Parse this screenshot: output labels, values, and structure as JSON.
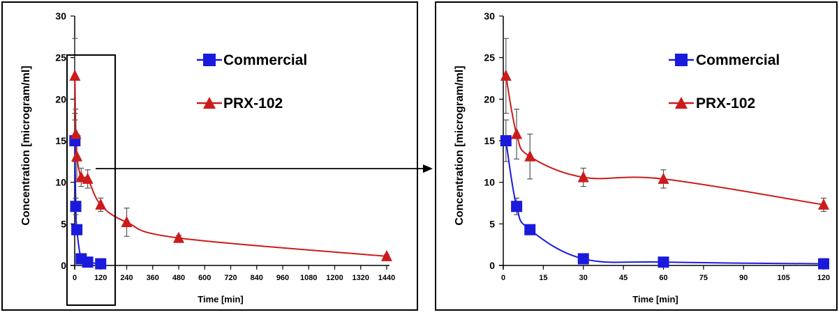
{
  "charts": [
    {
      "ylabel": "Concentration [microgram/ml]",
      "xlabel": "Time [min]",
      "y_ticks": [
        "0",
        "5",
        "10",
        "15",
        "20",
        "25",
        "30"
      ],
      "x_ticks": [
        "0",
        "120",
        "240",
        "360",
        "480",
        "600",
        "720",
        "840",
        "960",
        "1080",
        "1200",
        "1320",
        "1440"
      ],
      "legend": [
        "Commercial",
        "PRX-102"
      ]
    },
    {
      "ylabel": "Concentration [microgram/ml]",
      "xlabel": "Time [min]",
      "y_ticks": [
        "0",
        "5",
        "10",
        "15",
        "20",
        "25",
        "30"
      ],
      "x_ticks": [
        "0",
        "15",
        "30",
        "45",
        "60",
        "75",
        "90",
        "105",
        "120"
      ],
      "legend": [
        "Commercial",
        "PRX-102"
      ]
    }
  ],
  "colors": {
    "commercial": "#1a1adc",
    "prx": "#cc1b1b",
    "axis": "#000000",
    "errbar": "#555555"
  },
  "chart_data": [
    {
      "type": "line",
      "xlabel": "Time [min]",
      "ylabel": "Concentration [microgram/ml]",
      "xlim": [
        0,
        1440
      ],
      "ylim": [
        0,
        30
      ],
      "legend_position": "top-right",
      "series": [
        {
          "name": "Commercial",
          "marker": "square",
          "x": [
            1,
            5,
            10,
            30,
            60,
            120
          ],
          "y": [
            15.0,
            7.1,
            4.3,
            0.8,
            0.4,
            0.2
          ],
          "err": [
            2.5,
            1.0,
            0.4,
            0.2,
            0.1,
            0.1
          ]
        },
        {
          "name": "PRX-102",
          "marker": "triangle",
          "x": [
            1,
            5,
            10,
            30,
            60,
            120,
            240,
            480,
            1440
          ],
          "y": [
            22.8,
            15.8,
            13.1,
            10.6,
            10.4,
            7.3,
            5.2,
            3.3,
            1.1
          ],
          "err": [
            4.5,
            3.0,
            2.7,
            1.1,
            1.1,
            0.8,
            1.7,
            0.3,
            0.2
          ]
        }
      ],
      "annotations": [
        "zoom box around 0-120 min, arrow to detail chart"
      ]
    },
    {
      "type": "line",
      "xlabel": "Time [min]",
      "ylabel": "Concentration [microgram/ml]",
      "xlim": [
        0,
        120
      ],
      "ylim": [
        0,
        30
      ],
      "legend_position": "top-right",
      "series": [
        {
          "name": "Commercial",
          "marker": "square",
          "x": [
            1,
            5,
            10,
            30,
            60,
            120
          ],
          "y": [
            15.0,
            7.1,
            4.3,
            0.8,
            0.4,
            0.2
          ],
          "err": [
            2.5,
            1.0,
            0.4,
            0.2,
            0.1,
            0.1
          ]
        },
        {
          "name": "PRX-102",
          "marker": "triangle",
          "x": [
            1,
            5,
            10,
            30,
            60,
            120
          ],
          "y": [
            22.8,
            15.8,
            13.1,
            10.6,
            10.4,
            7.3
          ],
          "err": [
            4.5,
            3.0,
            2.7,
            1.1,
            1.1,
            0.8
          ]
        }
      ]
    }
  ]
}
